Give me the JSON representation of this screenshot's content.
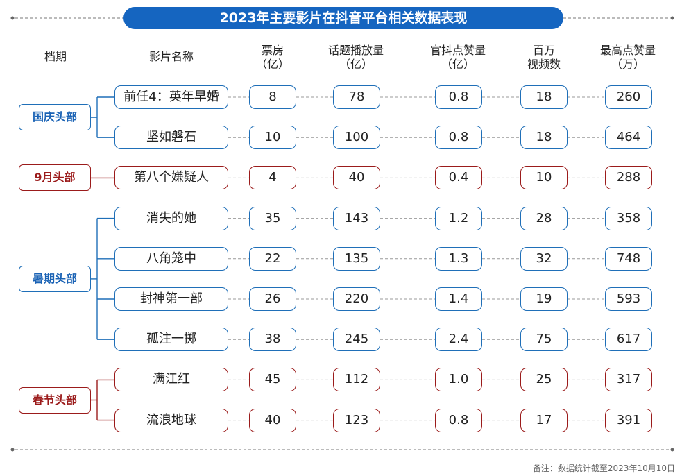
{
  "title": "2023年主要影片在抖音平台相关数据表现",
  "headers": {
    "period": "档期",
    "film": "影片名称",
    "box": [
      "票房",
      "（亿）"
    ],
    "topic": [
      "话题播放量",
      "（亿）"
    ],
    "likes": [
      "官抖点赞量",
      "（亿）"
    ],
    "videos": [
      "百万",
      "视频数"
    ],
    "peak": [
      "最高点赞量",
      "（万）"
    ]
  },
  "colors": {
    "blue": "#1f6fb8",
    "red": "#9b1b1b",
    "title_bg": "#1565c0"
  },
  "note": "备注：数据统计截至2023年10月10日",
  "chart_data": {
    "type": "table",
    "columns": [
      "档期",
      "影片名称",
      "票房（亿）",
      "话题播放量（亿）",
      "官抖点赞量（亿）",
      "百万视频数",
      "最高点赞量（万）"
    ],
    "groups": [
      {
        "name": "国庆头部",
        "color": "blue",
        "rows": [
          {
            "film": "前任4：英年早婚",
            "box": "8",
            "topic": "78",
            "likes": "0.8",
            "videos": "18",
            "peak": "260"
          },
          {
            "film": "坚如磐石",
            "box": "10",
            "topic": "100",
            "likes": "0.8",
            "videos": "18",
            "peak": "464"
          }
        ]
      },
      {
        "name": "9月头部",
        "color": "red",
        "rows": [
          {
            "film": "第八个嫌疑人",
            "box": "4",
            "topic": "40",
            "likes": "0.4",
            "videos": "10",
            "peak": "288"
          }
        ]
      },
      {
        "name": "暑期头部",
        "color": "blue",
        "rows": [
          {
            "film": "消失的她",
            "box": "35",
            "topic": "143",
            "likes": "1.2",
            "videos": "28",
            "peak": "358"
          },
          {
            "film": "八角笼中",
            "box": "22",
            "topic": "135",
            "likes": "1.3",
            "videos": "32",
            "peak": "748"
          },
          {
            "film": "封神第一部",
            "box": "26",
            "topic": "220",
            "likes": "1.4",
            "videos": "19",
            "peak": "593"
          },
          {
            "film": "孤注一掷",
            "box": "38",
            "topic": "245",
            "likes": "2.4",
            "videos": "75",
            "peak": "617"
          }
        ]
      },
      {
        "name": "春节头部",
        "color": "red",
        "rows": [
          {
            "film": "满江红",
            "box": "45",
            "topic": "112",
            "likes": "1.0",
            "videos": "25",
            "peak": "317"
          },
          {
            "film": "流浪地球",
            "box": "40",
            "topic": "123",
            "likes": "0.8",
            "videos": "17",
            "peak": "391"
          }
        ]
      }
    ]
  }
}
